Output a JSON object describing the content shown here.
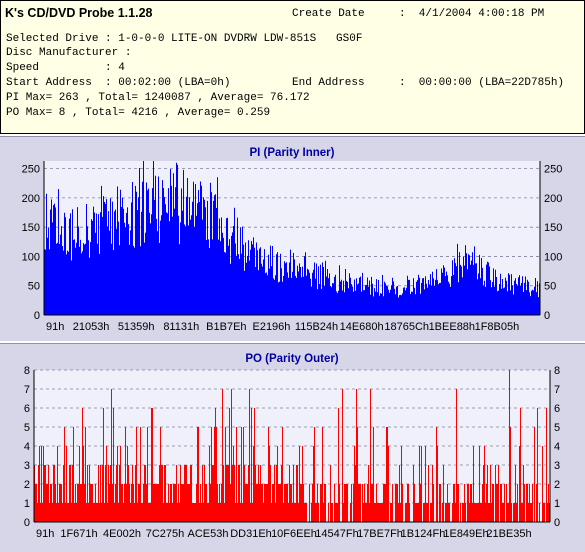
{
  "app": {
    "title": "K's CD/DVD Probe 1.1.28"
  },
  "info": {
    "create_date_label": "Create Date",
    "create_date_value": ":  4/1/2004 4:00:18 PM",
    "selected_drive": "Selected Drive : 1-0-0-0 LITE-ON DVDRW LDW-851S   GS0F",
    "disc_manufacturer": "Disc Manufacturer :",
    "speed": "Speed          : 4",
    "start_address": "Start Address  : 00:02:00 (LBA=0h)",
    "end_address_label": "End Address",
    "end_address_value": ":  00:00:00 (LBA=22D785h)",
    "pi_summary": "PI Max= 263 , Total= 1240087 , Average= 76.172",
    "po_summary": "PO Max= 8 , Total= 4216 , Average= 0.259"
  },
  "colors": {
    "info_bg": "#ffffe6",
    "panel_bg": "#d6d6e8",
    "plot_bg": "#f0f0fa",
    "pi_series": "#0000ff",
    "po_series": "#ff0000",
    "title_text": "#0000a0"
  },
  "chart_data": [
    {
      "type": "bar",
      "title": "PI (Parity Inner)",
      "ylim": [
        0,
        263
      ],
      "yticks": [
        0,
        50,
        100,
        150,
        200,
        250
      ],
      "xtick_labels": [
        "91h",
        "21053h",
        "51359h",
        "81131h",
        "B1B7Eh",
        "E2196h",
        "115B24h",
        "14E680h",
        "18765Ch",
        "1BEE88h",
        "1F8B05h"
      ],
      "grid": true,
      "series": [
        {
          "profile_x": [
            0,
            0.02,
            0.06,
            0.1,
            0.16,
            0.22,
            0.27,
            0.31,
            0.35,
            0.38,
            0.41,
            0.44,
            0.48,
            0.52,
            0.56,
            0.6,
            0.63,
            0.66,
            0.7,
            0.74,
            0.78,
            0.8,
            0.83,
            0.85,
            0.87,
            0.9,
            0.93,
            0.96,
            1.0
          ],
          "profile_y": [
            185,
            160,
            150,
            165,
            180,
            205,
            200,
            195,
            175,
            140,
            115,
            100,
            90,
            82,
            70,
            60,
            55,
            50,
            48,
            52,
            60,
            65,
            85,
            105,
            95,
            70,
            58,
            55,
            50
          ],
          "max": 263,
          "average": 76.172
        }
      ]
    },
    {
      "type": "bar",
      "title": "PO (Parity Outer)",
      "ylim": [
        0,
        8
      ],
      "yticks": [
        0,
        1,
        2,
        3,
        4,
        5,
        6,
        7,
        8
      ],
      "xtick_labels": [
        "91h",
        "1F671h",
        "4E002h",
        "7C275h",
        "ACE53h",
        "DD31Eh",
        "10F6EEh",
        "14547Fh",
        "17BE7Fh",
        "1B124Fh",
        "1E849Eh",
        "21BE35h"
      ],
      "grid": true,
      "series": [
        {
          "profile_x": [
            0,
            0.25,
            0.45,
            0.55,
            0.7,
            0.85,
            1.0
          ],
          "profile_y": [
            2,
            2,
            2,
            1.3,
            1,
            1,
            1.2
          ],
          "max": 8,
          "average": 0.259
        }
      ]
    }
  ]
}
